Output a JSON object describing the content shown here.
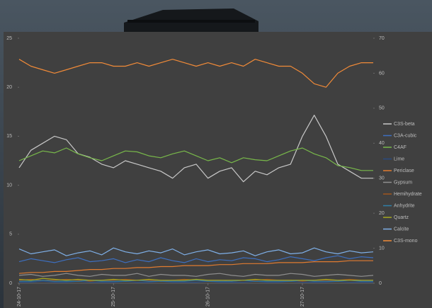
{
  "chart_data": {
    "type": "line",
    "x": [
      0,
      3,
      6,
      9,
      12,
      15,
      18,
      21,
      24,
      27,
      30,
      33,
      36,
      39,
      42,
      45,
      48,
      51,
      54,
      57,
      60,
      63,
      66,
      69,
      72,
      75,
      78,
      81,
      84,
      87,
      90
    ],
    "xlim": [
      0,
      90
    ],
    "xticks": [
      {
        "value": 0,
        "label": "24-10-17"
      },
      {
        "value": 24,
        "label": "25-10-17"
      },
      {
        "value": 48,
        "label": "26-10-17"
      },
      {
        "value": 72,
        "label": "27-10-17"
      }
    ],
    "ylim": [
      0,
      25
    ],
    "yticks": [
      0,
      5,
      10,
      15,
      20,
      25
    ],
    "y2lim": [
      0,
      70
    ],
    "y2ticks": [
      0,
      10,
      20,
      30,
      40,
      50,
      60,
      70
    ],
    "legend": "right",
    "series": [
      {
        "name": "C3S-beta",
        "color": "#c8c8c8",
        "axis": "y2",
        "values": [
          33,
          38,
          40,
          42,
          41,
          37,
          36,
          34,
          33,
          35,
          34,
          33,
          32,
          30,
          33,
          34,
          30,
          32,
          33,
          29,
          32,
          31,
          33,
          34,
          42,
          48,
          42,
          34,
          32,
          30,
          30
        ]
      },
      {
        "name": "C3A-cubic",
        "color": "#3d6fc0",
        "values": [
          2.2,
          2.5,
          2.3,
          2.1,
          2.4,
          2.6,
          2.2,
          2.3,
          2.5,
          2.1,
          2.4,
          2.2,
          2.6,
          2.3,
          2.1,
          2.5,
          2.2,
          2.4,
          2.3,
          2.6,
          2.5,
          2.2,
          2.4,
          2.7,
          2.5,
          2.3,
          2.6,
          2.8,
          2.5,
          2.7,
          2.6
        ]
      },
      {
        "name": "C4AF",
        "color": "#78b84a",
        "values": [
          12.5,
          13,
          13.5,
          13.3,
          13.8,
          13.2,
          12.8,
          12.5,
          13,
          13.5,
          13.4,
          13,
          12.8,
          13.2,
          13.5,
          13,
          12.5,
          12.8,
          12.3,
          12.8,
          12.6,
          12.5,
          13,
          13.5,
          13.8,
          13.2,
          12.8,
          12,
          11.8,
          11.5,
          11.5
        ]
      },
      {
        "name": "Lime",
        "color": "#2a4a80",
        "values": [
          0.1,
          0.1,
          0.2,
          0.1,
          0.1,
          0.2,
          0.1,
          0.1,
          0.1,
          0.2,
          0.1,
          0.1,
          0.2,
          0.1,
          0.1,
          0.1,
          0.2,
          0.1,
          0.1,
          0.1,
          0.2,
          0.1,
          0.1,
          0.2,
          0.1,
          0.1,
          0.1,
          0.2,
          0.1,
          0.1,
          0.1
        ]
      },
      {
        "name": "Periclase",
        "color": "#e07b30",
        "values": [
          1,
          1.1,
          1.1,
          1.2,
          1.2,
          1.3,
          1.4,
          1.4,
          1.5,
          1.5,
          1.6,
          1.6,
          1.7,
          1.7,
          1.8,
          1.8,
          1.8,
          1.9,
          1.9,
          2,
          2,
          2,
          2.1,
          2.1,
          2.1,
          2.2,
          2.2,
          2.2,
          2.3,
          2.3,
          2.3
        ]
      },
      {
        "name": "Gypsum",
        "color": "#8f8f8f",
        "values": [
          0.8,
          0.9,
          0.7,
          0.8,
          1,
          0.8,
          0.7,
          0.9,
          0.8,
          0.8,
          1,
          0.7,
          0.9,
          0.8,
          0.8,
          0.7,
          0.9,
          1,
          0.8,
          0.7,
          0.9,
          0.8,
          0.8,
          1,
          0.9,
          0.7,
          0.8,
          0.9,
          0.8,
          0.7,
          0.8
        ]
      },
      {
        "name": "Hemihydrate",
        "color": "#a0561c",
        "values": [
          0.3,
          0.4,
          0.3,
          0.3,
          0.4,
          0.3,
          0.2,
          0.3,
          0.3,
          0.4,
          0.3,
          0.3,
          0.2,
          0.3,
          0.4,
          0.3,
          0.3,
          0.3,
          0.2,
          0.3,
          0.3,
          0.4,
          0.3,
          0.3,
          0.2,
          0.3,
          0.3,
          0.3,
          0.4,
          0.3,
          0.3
        ]
      },
      {
        "name": "Anhydrite",
        "color": "#2f7fa8",
        "values": [
          0.2,
          0.2,
          0.3,
          0.2,
          0.2,
          0.2,
          0.3,
          0.2,
          0.2,
          0.2,
          0.3,
          0.2,
          0.2,
          0.2,
          0.2,
          0.3,
          0.2,
          0.2,
          0.2,
          0.3,
          0.2,
          0.2,
          0.2,
          0.2,
          0.3,
          0.2,
          0.2,
          0.2,
          0.3,
          0.2,
          0.2
        ]
      },
      {
        "name": "Quartz",
        "color": "#a5a820",
        "values": [
          0.4,
          0.3,
          0.5,
          0.4,
          0.3,
          0.4,
          0.3,
          0.3,
          0.4,
          0.3,
          0.3,
          0.4,
          0.3,
          0.3,
          0.3,
          0.4,
          0.3,
          0.3,
          0.3,
          0.3,
          0.4,
          0.3,
          0.3,
          0.3,
          0.3,
          0.3,
          0.4,
          0.3,
          0.3,
          0.3,
          0.3
        ]
      },
      {
        "name": "Calcite",
        "color": "#7fb0e8",
        "values": [
          3.5,
          3,
          3.2,
          3.4,
          2.8,
          3.1,
          3.3,
          2.9,
          3.6,
          3.2,
          3,
          3.3,
          3.1,
          3.5,
          2.9,
          3.2,
          3.4,
          3,
          3.1,
          3.3,
          2.8,
          3.2,
          3.4,
          3,
          3.1,
          3.6,
          3.2,
          3,
          3.3,
          3.1,
          3.2
        ]
      },
      {
        "name": "C3S-mono",
        "color": "#f08a38",
        "axis": "y2",
        "values": [
          64,
          62,
          61,
          60,
          61,
          62,
          63,
          63,
          62,
          62,
          63,
          62,
          63,
          64,
          63,
          62,
          63,
          62,
          63,
          62,
          64,
          63,
          62,
          62,
          60,
          57,
          56,
          60,
          62,
          63,
          63
        ]
      }
    ]
  }
}
